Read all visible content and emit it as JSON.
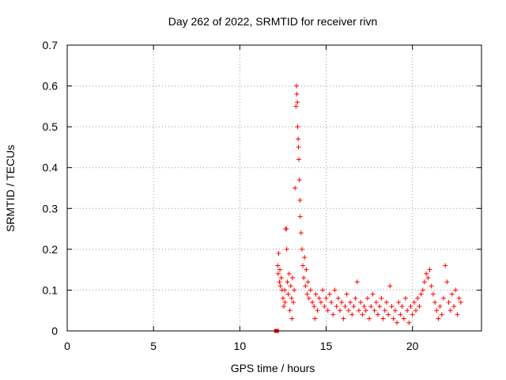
{
  "chart_data": {
    "type": "scatter",
    "title": "Day 262 of 2022, SRMTID for receiver rivn",
    "xlabel": "GPS time / hours",
    "ylabel": "SRMTID / TECUs",
    "xlim": [
      0,
      24
    ],
    "ylim": [
      0,
      0.7
    ],
    "xticks": [
      0,
      5,
      10,
      15,
      20
    ],
    "yticks": [
      0,
      0.1,
      0.2,
      0.3,
      0.4,
      0.5,
      0.6,
      0.7
    ],
    "xtick_labels": [
      "0",
      "5",
      "10",
      "15",
      "20"
    ],
    "ytick_labels": [
      "0",
      "0.1",
      "0.2",
      "0.3",
      "0.4",
      "0.5",
      "0.6",
      "0.7"
    ],
    "grid": true,
    "marker": "+",
    "series": [
      {
        "name": "rivn",
        "color": "#ff0000",
        "points": [
          [
            12.1,
            0.0
          ],
          [
            12.15,
            0.0
          ],
          [
            12.2,
            0.16
          ],
          [
            12.22,
            0.14
          ],
          [
            12.25,
            0.19
          ],
          [
            12.3,
            0.12
          ],
          [
            12.32,
            0.15
          ],
          [
            12.35,
            0.11
          ],
          [
            12.4,
            0.13
          ],
          [
            12.45,
            0.1
          ],
          [
            12.5,
            0.08
          ],
          [
            12.55,
            0.06
          ],
          [
            12.6,
            0.1
          ],
          [
            12.62,
            0.07
          ],
          [
            12.65,
            0.25
          ],
          [
            12.7,
            0.25
          ],
          [
            12.72,
            0.2
          ],
          [
            12.75,
            0.12
          ],
          [
            12.8,
            0.09
          ],
          [
            12.85,
            0.14
          ],
          [
            12.9,
            0.05
          ],
          [
            12.95,
            0.11
          ],
          [
            13.0,
            0.08
          ],
          [
            13.02,
            0.03
          ],
          [
            13.05,
            0.13
          ],
          [
            13.1,
            0.07
          ],
          [
            13.15,
            0.1
          ],
          [
            13.2,
            0.35
          ],
          [
            13.25,
            0.55
          ],
          [
            13.28,
            0.6
          ],
          [
            13.3,
            0.58
          ],
          [
            13.33,
            0.56
          ],
          [
            13.35,
            0.5
          ],
          [
            13.38,
            0.47
          ],
          [
            13.4,
            0.45
          ],
          [
            13.42,
            0.42
          ],
          [
            13.45,
            0.37
          ],
          [
            13.48,
            0.32
          ],
          [
            13.5,
            0.28
          ],
          [
            13.55,
            0.24
          ],
          [
            13.6,
            0.2
          ],
          [
            13.65,
            0.16
          ],
          [
            13.7,
            0.13
          ],
          [
            13.75,
            0.18
          ],
          [
            13.8,
            0.11
          ],
          [
            13.85,
            0.15
          ],
          [
            13.9,
            0.09
          ],
          [
            13.95,
            0.12
          ],
          [
            14.0,
            0.08
          ],
          [
            14.1,
            0.1
          ],
          [
            14.2,
            0.07
          ],
          [
            14.3,
            0.06
          ],
          [
            14.35,
            0.03
          ],
          [
            14.4,
            0.09
          ],
          [
            14.5,
            0.05
          ],
          [
            14.6,
            0.08
          ],
          [
            14.7,
            0.07
          ],
          [
            14.8,
            0.1
          ],
          [
            14.9,
            0.06
          ],
          [
            15.0,
            0.08
          ],
          [
            15.1,
            0.05
          ],
          [
            15.2,
            0.09
          ],
          [
            15.3,
            0.07
          ],
          [
            15.4,
            0.04
          ],
          [
            15.5,
            0.1
          ],
          [
            15.6,
            0.06
          ],
          [
            15.7,
            0.08
          ],
          [
            15.8,
            0.05
          ],
          [
            15.9,
            0.07
          ],
          [
            16.0,
            0.03
          ],
          [
            16.1,
            0.06
          ],
          [
            16.2,
            0.09
          ],
          [
            16.3,
            0.05
          ],
          [
            16.4,
            0.07
          ],
          [
            16.5,
            0.04
          ],
          [
            16.6,
            0.06
          ],
          [
            16.7,
            0.08
          ],
          [
            16.8,
            0.12
          ],
          [
            16.9,
            0.05
          ],
          [
            17.0,
            0.07
          ],
          [
            17.1,
            0.04
          ],
          [
            17.2,
            0.06
          ],
          [
            17.3,
            0.05
          ],
          [
            17.4,
            0.08
          ],
          [
            17.5,
            0.03
          ],
          [
            17.6,
            0.06
          ],
          [
            17.7,
            0.09
          ],
          [
            17.8,
            0.05
          ],
          [
            17.9,
            0.07
          ],
          [
            18.0,
            0.04
          ],
          [
            18.1,
            0.06
          ],
          [
            18.2,
            0.08
          ],
          [
            18.3,
            0.03
          ],
          [
            18.4,
            0.05
          ],
          [
            18.5,
            0.07
          ],
          [
            18.6,
            0.04
          ],
          [
            18.7,
            0.11
          ],
          [
            18.8,
            0.06
          ],
          [
            18.9,
            0.03
          ],
          [
            19.0,
            0.05
          ],
          [
            19.1,
            0.02
          ],
          [
            19.2,
            0.07
          ],
          [
            19.3,
            0.04
          ],
          [
            19.4,
            0.06
          ],
          [
            19.5,
            0.03
          ],
          [
            19.6,
            0.08
          ],
          [
            19.7,
            0.05
          ],
          [
            19.8,
            0.02
          ],
          [
            19.9,
            0.06
          ],
          [
            20.0,
            0.04
          ],
          [
            20.1,
            0.07
          ],
          [
            20.2,
            0.05
          ],
          [
            20.3,
            0.08
          ],
          [
            20.4,
            0.06
          ],
          [
            20.5,
            0.09
          ],
          [
            20.6,
            0.1
          ],
          [
            20.7,
            0.12
          ],
          [
            20.8,
            0.14
          ],
          [
            20.9,
            0.13
          ],
          [
            21.0,
            0.15
          ],
          [
            21.1,
            0.11
          ],
          [
            21.2,
            0.09
          ],
          [
            21.3,
            0.07
          ],
          [
            21.4,
            0.05
          ],
          [
            21.5,
            0.03
          ],
          [
            21.6,
            0.06
          ],
          [
            21.7,
            0.04
          ],
          [
            21.8,
            0.08
          ],
          [
            21.9,
            0.16
          ],
          [
            22.0,
            0.12
          ],
          [
            22.1,
            0.07
          ],
          [
            22.2,
            0.05
          ],
          [
            22.3,
            0.09
          ],
          [
            22.4,
            0.06
          ],
          [
            22.5,
            0.1
          ],
          [
            22.6,
            0.04
          ],
          [
            22.7,
            0.08
          ],
          [
            22.8,
            0.07
          ]
        ]
      }
    ]
  }
}
